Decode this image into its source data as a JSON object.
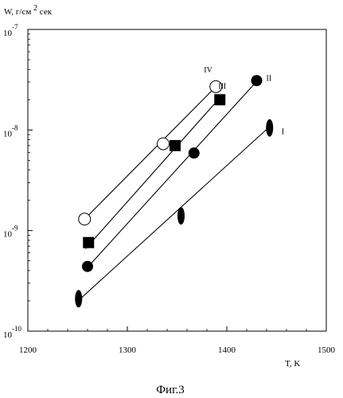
{
  "chart_data": {
    "type": "scatter",
    "title": "",
    "xlabel": "T, K",
    "ylabel_main": "W, г/см",
    "ylabel_exp": "2",
    "ylabel_tail": "сек",
    "caption": "Фиг.3",
    "xlim": [
      1200,
      1500
    ],
    "ylim_log10": [
      -10,
      -7
    ],
    "x_ticks": [
      {
        "value": 1200,
        "label": "1200"
      },
      {
        "value": 1300,
        "label": "1300"
      },
      {
        "value": 1400,
        "label": "1400"
      },
      {
        "value": 1500,
        "label": "1500"
      }
    ],
    "y_ticks": [
      {
        "exp": -7,
        "base": "10",
        "sup": "-7"
      },
      {
        "exp": -8,
        "base": "10",
        "sup": "-8"
      },
      {
        "exp": -9,
        "base": "10",
        "sup": "-9"
      },
      {
        "exp": -10,
        "base": "10",
        "sup": "-10"
      }
    ],
    "series": [
      {
        "name": "I",
        "marker": "ellipse-filled",
        "points": [
          [
            1251,
            2.1e-10
          ],
          [
            1354,
            1.4e-09
          ],
          [
            1443,
            1.05e-08
          ]
        ],
        "line": [
          [
            1248,
            1.9e-10
          ],
          [
            1443,
            1.08e-08
          ]
        ]
      },
      {
        "name": "II",
        "marker": "circle-filled",
        "points": [
          [
            1260,
            4.4e-10
          ],
          [
            1367,
            5.9e-09
          ],
          [
            1430,
            3.1e-08
          ]
        ],
        "line": [
          [
            1258,
            4.1e-10
          ],
          [
            1432,
            3.2e-08
          ]
        ]
      },
      {
        "name": "III",
        "marker": "square-filled",
        "points": [
          [
            1261,
            7.6e-10
          ],
          [
            1348,
            7e-09
          ],
          [
            1393,
            2e-08
          ]
        ],
        "line": [
          [
            1258,
            6.6e-10
          ],
          [
            1395,
            2.2e-08
          ]
        ]
      },
      {
        "name": "IV",
        "marker": "circle-open",
        "points": [
          [
            1257,
            1.3e-09
          ],
          [
            1336,
            7.3e-09
          ],
          [
            1389,
            2.7e-08
          ]
        ],
        "line": [
          [
            1257,
            1.3e-09
          ],
          [
            1389,
            2.7e-08
          ]
        ]
      }
    ]
  }
}
